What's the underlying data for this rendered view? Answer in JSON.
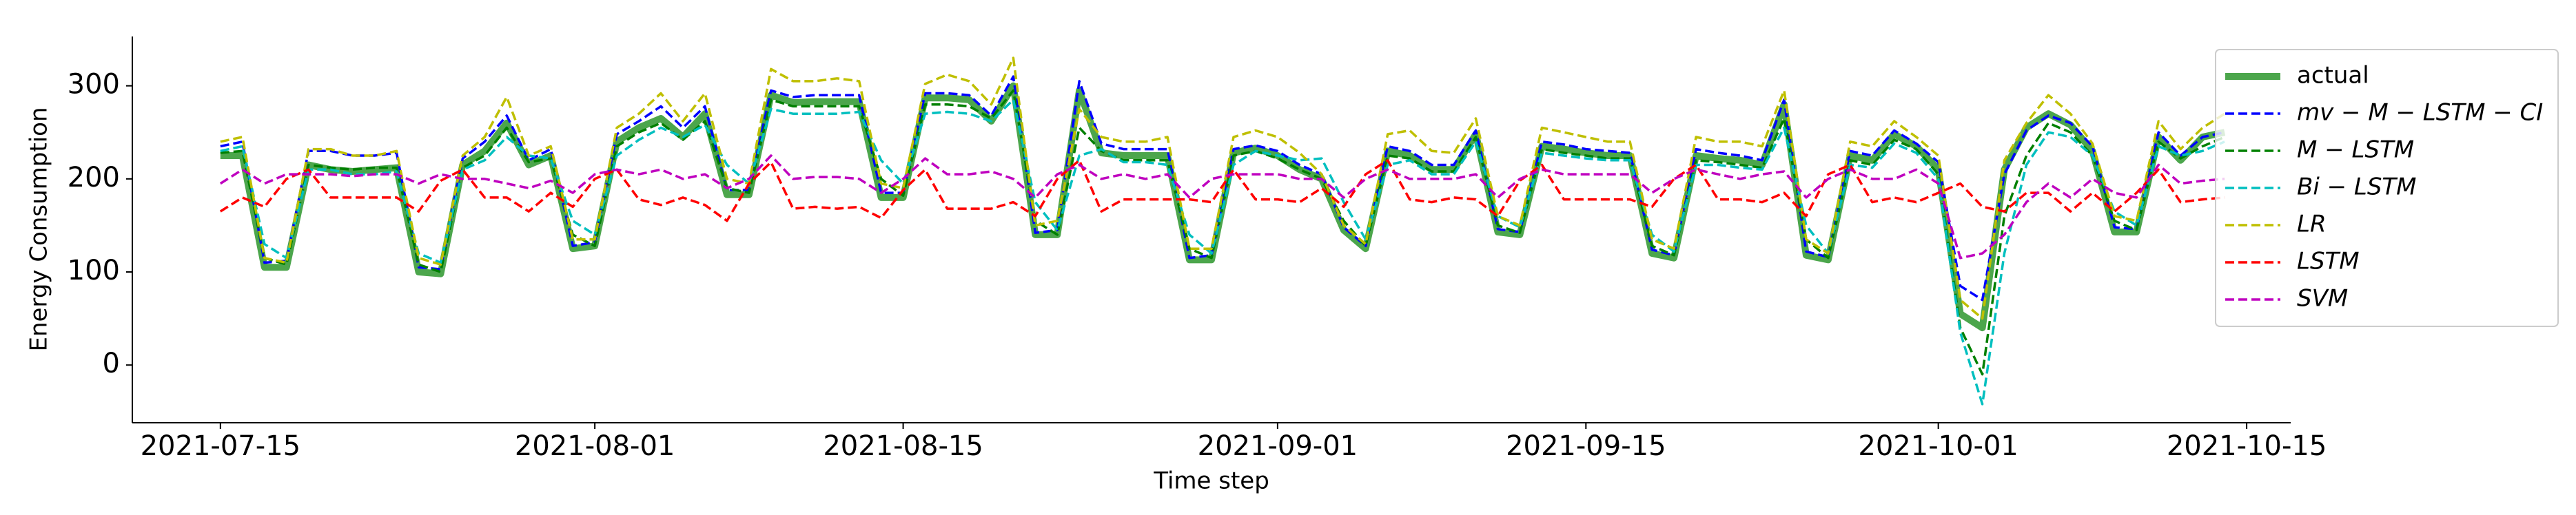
{
  "chart_data": {
    "type": "line",
    "x_label": "Time step",
    "y_label": "Energy Consumption",
    "x": [
      "2021-07-15",
      "2021-07-16",
      "2021-07-17",
      "2021-07-18",
      "2021-07-19",
      "2021-07-20",
      "2021-07-21",
      "2021-07-22",
      "2021-07-23",
      "2021-07-24",
      "2021-07-25",
      "2021-07-26",
      "2021-07-27",
      "2021-07-28",
      "2021-07-29",
      "2021-07-30",
      "2021-07-31",
      "2021-08-01",
      "2021-08-02",
      "2021-08-03",
      "2021-08-04",
      "2021-08-05",
      "2021-08-06",
      "2021-08-07",
      "2021-08-08",
      "2021-08-09",
      "2021-08-10",
      "2021-08-11",
      "2021-08-12",
      "2021-08-13",
      "2021-08-14",
      "2021-08-15",
      "2021-08-16",
      "2021-08-17",
      "2021-08-18",
      "2021-08-19",
      "2021-08-20",
      "2021-08-21",
      "2021-08-22",
      "2021-08-23",
      "2021-08-24",
      "2021-08-25",
      "2021-08-26",
      "2021-08-27",
      "2021-08-28",
      "2021-08-29",
      "2021-08-30",
      "2021-08-31",
      "2021-09-01",
      "2021-09-02",
      "2021-09-03",
      "2021-09-04",
      "2021-09-05",
      "2021-09-06",
      "2021-09-07",
      "2021-09-08",
      "2021-09-09",
      "2021-09-10",
      "2021-09-11",
      "2021-09-12",
      "2021-09-13",
      "2021-09-14",
      "2021-09-15",
      "2021-09-16",
      "2021-09-17",
      "2021-09-18",
      "2021-09-19",
      "2021-09-20",
      "2021-09-21",
      "2021-09-22",
      "2021-09-23",
      "2021-09-24",
      "2021-09-25",
      "2021-09-26",
      "2021-09-27",
      "2021-09-28",
      "2021-09-29",
      "2021-09-30",
      "2021-10-01",
      "2021-10-02",
      "2021-10-03",
      "2021-10-04",
      "2021-10-05",
      "2021-10-06",
      "2021-10-07",
      "2021-10-08",
      "2021-10-09",
      "2021-10-10",
      "2021-10-11",
      "2021-10-12",
      "2021-10-13",
      "2021-10-14"
    ],
    "xlim": [
      "2021-07-11",
      "2021-10-17"
    ],
    "xticks": [
      "2021-07-15",
      "2021-08-01",
      "2021-08-15",
      "2021-09-01",
      "2021-09-15",
      "2021-10-01",
      "2021-10-15"
    ],
    "ylim": [
      -62,
      353
    ],
    "yticks": [
      0,
      100,
      200,
      300
    ],
    "grid": false,
    "legend": "upper right",
    "series": [
      {
        "name": "actual",
        "color": "#4ca64c",
        "style": "solid",
        "values": [
          225,
          225,
          105,
          105,
          215,
          210,
          208,
          210,
          212,
          100,
          98,
          215,
          230,
          260,
          215,
          225,
          125,
          128,
          240,
          255,
          265,
          245,
          270,
          183,
          183,
          290,
          282,
          283,
          283,
          283,
          180,
          180,
          287,
          287,
          285,
          262,
          300,
          140,
          140,
          295,
          228,
          225,
          225,
          225,
          113,
          113,
          228,
          233,
          225,
          210,
          200,
          145,
          125,
          230,
          225,
          210,
          210,
          248,
          143,
          140,
          235,
          232,
          228,
          225,
          225,
          120,
          115,
          225,
          222,
          220,
          215,
          280,
          118,
          113,
          225,
          220,
          248,
          235,
          210,
          55,
          40,
          210,
          255,
          270,
          258,
          230,
          143,
          143,
          245,
          220,
          245,
          250
        ]
      },
      {
        "name": "mv − M − LSTM − CI",
        "color": "#0000ff",
        "style": "dashed",
        "values": [
          235,
          240,
          110,
          112,
          230,
          230,
          225,
          225,
          228,
          105,
          103,
          222,
          240,
          268,
          220,
          232,
          128,
          132,
          248,
          262,
          278,
          255,
          278,
          188,
          188,
          295,
          288,
          290,
          290,
          290,
          185,
          185,
          292,
          292,
          290,
          268,
          310,
          142,
          145,
          305,
          238,
          232,
          232,
          232,
          115,
          118,
          232,
          236,
          230,
          215,
          205,
          148,
          128,
          235,
          230,
          215,
          215,
          252,
          146,
          143,
          240,
          237,
          232,
          230,
          228,
          124,
          118,
          232,
          228,
          225,
          220,
          285,
          122,
          116,
          230,
          225,
          252,
          238,
          218,
          85,
          70,
          205,
          252,
          268,
          260,
          235,
          148,
          146,
          250,
          225,
          245,
          250
        ]
      },
      {
        "name": "M − LSTM",
        "color": "#008000",
        "style": "dashed",
        "values": [
          228,
          230,
          115,
          108,
          215,
          212,
          210,
          212,
          212,
          108,
          100,
          212,
          225,
          255,
          218,
          222,
          140,
          128,
          235,
          250,
          260,
          242,
          262,
          190,
          185,
          285,
          278,
          278,
          278,
          278,
          200,
          182,
          280,
          280,
          278,
          265,
          295,
          155,
          140,
          255,
          230,
          220,
          220,
          220,
          125,
          115,
          225,
          230,
          222,
          210,
          200,
          155,
          128,
          225,
          222,
          208,
          208,
          245,
          150,
          142,
          232,
          228,
          225,
          222,
          222,
          128,
          118,
          220,
          218,
          215,
          212,
          265,
          135,
          115,
          220,
          215,
          242,
          232,
          205,
          40,
          -10,
          160,
          225,
          260,
          250,
          225,
          155,
          145,
          240,
          222,
          235,
          245
        ]
      },
      {
        "name": "Bi − LSTM",
        "color": "#00bfbf",
        "style": "dashed",
        "values": [
          230,
          235,
          130,
          115,
          210,
          210,
          205,
          205,
          208,
          120,
          110,
          210,
          220,
          245,
          225,
          222,
          155,
          140,
          225,
          242,
          255,
          245,
          258,
          215,
          195,
          275,
          270,
          270,
          270,
          272,
          220,
          195,
          270,
          272,
          270,
          262,
          285,
          175,
          145,
          225,
          232,
          218,
          218,
          215,
          140,
          120,
          215,
          230,
          225,
          220,
          222,
          175,
          135,
          215,
          220,
          205,
          205,
          240,
          160,
          148,
          228,
          225,
          222,
          220,
          220,
          140,
          122,
          215,
          215,
          212,
          210,
          255,
          150,
          120,
          215,
          212,
          238,
          228,
          200,
          35,
          -42,
          120,
          215,
          250,
          245,
          225,
          165,
          150,
          235,
          225,
          230,
          240
        ]
      },
      {
        "name": "LR",
        "color": "#bfbf00",
        "style": "dashed",
        "values": [
          240,
          245,
          115,
          110,
          232,
          232,
          225,
          225,
          230,
          115,
          108,
          225,
          245,
          288,
          225,
          235,
          135,
          135,
          255,
          270,
          292,
          262,
          292,
          200,
          195,
          318,
          305,
          305,
          308,
          305,
          195,
          190,
          302,
          312,
          305,
          280,
          330,
          150,
          155,
          275,
          245,
          240,
          240,
          245,
          125,
          125,
          245,
          252,
          245,
          228,
          205,
          150,
          130,
          248,
          252,
          230,
          228,
          265,
          160,
          150,
          255,
          250,
          245,
          240,
          240,
          135,
          125,
          245,
          240,
          240,
          235,
          295,
          135,
          120,
          240,
          235,
          262,
          245,
          225,
          70,
          50,
          220,
          260,
          290,
          270,
          238,
          160,
          155,
          262,
          232,
          255,
          270
        ]
      },
      {
        "name": "LSTM",
        "color": "#ff0000",
        "style": "dashed",
        "values": [
          165,
          180,
          170,
          200,
          210,
          180,
          180,
          180,
          180,
          165,
          198,
          210,
          180,
          180,
          165,
          185,
          170,
          200,
          210,
          178,
          172,
          180,
          172,
          155,
          195,
          218,
          168,
          170,
          168,
          170,
          158,
          188,
          210,
          168,
          168,
          168,
          175,
          160,
          200,
          220,
          165,
          178,
          178,
          178,
          178,
          175,
          210,
          178,
          178,
          175,
          190,
          170,
          205,
          220,
          178,
          175,
          180,
          178,
          160,
          198,
          215,
          178,
          178,
          178,
          178,
          170,
          200,
          215,
          178,
          178,
          175,
          185,
          160,
          205,
          215,
          175,
          180,
          175,
          185,
          195,
          170,
          165,
          185,
          185,
          165,
          185,
          165,
          185,
          210,
          175,
          178,
          180
        ]
      },
      {
        "name": "SVM",
        "color": "#bf00bf",
        "style": "dashed",
        "values": [
          195,
          210,
          195,
          205,
          205,
          205,
          203,
          205,
          205,
          195,
          205,
          200,
          200,
          195,
          190,
          198,
          185,
          205,
          210,
          205,
          210,
          200,
          205,
          190,
          200,
          225,
          200,
          202,
          202,
          200,
          185,
          200,
          222,
          205,
          205,
          208,
          200,
          180,
          205,
          215,
          200,
          205,
          200,
          205,
          180,
          200,
          205,
          205,
          205,
          200,
          200,
          180,
          200,
          210,
          200,
          200,
          200,
          205,
          180,
          200,
          210,
          205,
          205,
          205,
          205,
          185,
          200,
          210,
          205,
          200,
          205,
          208,
          180,
          200,
          210,
          200,
          200,
          210,
          195,
          115,
          120,
          140,
          175,
          195,
          180,
          200,
          185,
          180,
          215,
          195,
          198,
          200
        ]
      }
    ]
  }
}
